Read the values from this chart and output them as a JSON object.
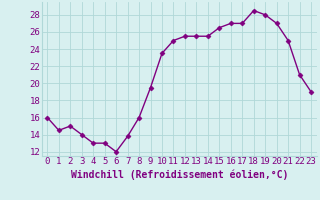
{
  "x": [
    0,
    1,
    2,
    3,
    4,
    5,
    6,
    7,
    8,
    9,
    10,
    11,
    12,
    13,
    14,
    15,
    16,
    17,
    18,
    19,
    20,
    21,
    22,
    23
  ],
  "y": [
    16,
    14.5,
    15,
    14,
    13,
    13,
    12,
    13.8,
    16,
    19.5,
    23.5,
    25,
    25.5,
    25.5,
    25.5,
    26.5,
    27,
    27,
    28.5,
    28,
    27,
    25,
    21,
    19
  ],
  "line_color": "#800080",
  "marker": "D",
  "bg_color": "#d8f0f0",
  "grid_color": "#b0d8d8",
  "xlabel": "Windchill (Refroidissement éolien,°C)",
  "xlabel_color": "#800080",
  "tick_color": "#800080",
  "ylim": [
    11.5,
    29.5
  ],
  "xlim": [
    -0.5,
    23.5
  ],
  "yticks": [
    12,
    14,
    16,
    18,
    20,
    22,
    24,
    26,
    28
  ],
  "xticks": [
    0,
    1,
    2,
    3,
    4,
    5,
    6,
    7,
    8,
    9,
    10,
    11,
    12,
    13,
    14,
    15,
    16,
    17,
    18,
    19,
    20,
    21,
    22,
    23
  ],
  "marker_size": 2.5,
  "line_width": 1.0,
  "font_size": 6.5,
  "xlabel_fontsize": 7.0
}
